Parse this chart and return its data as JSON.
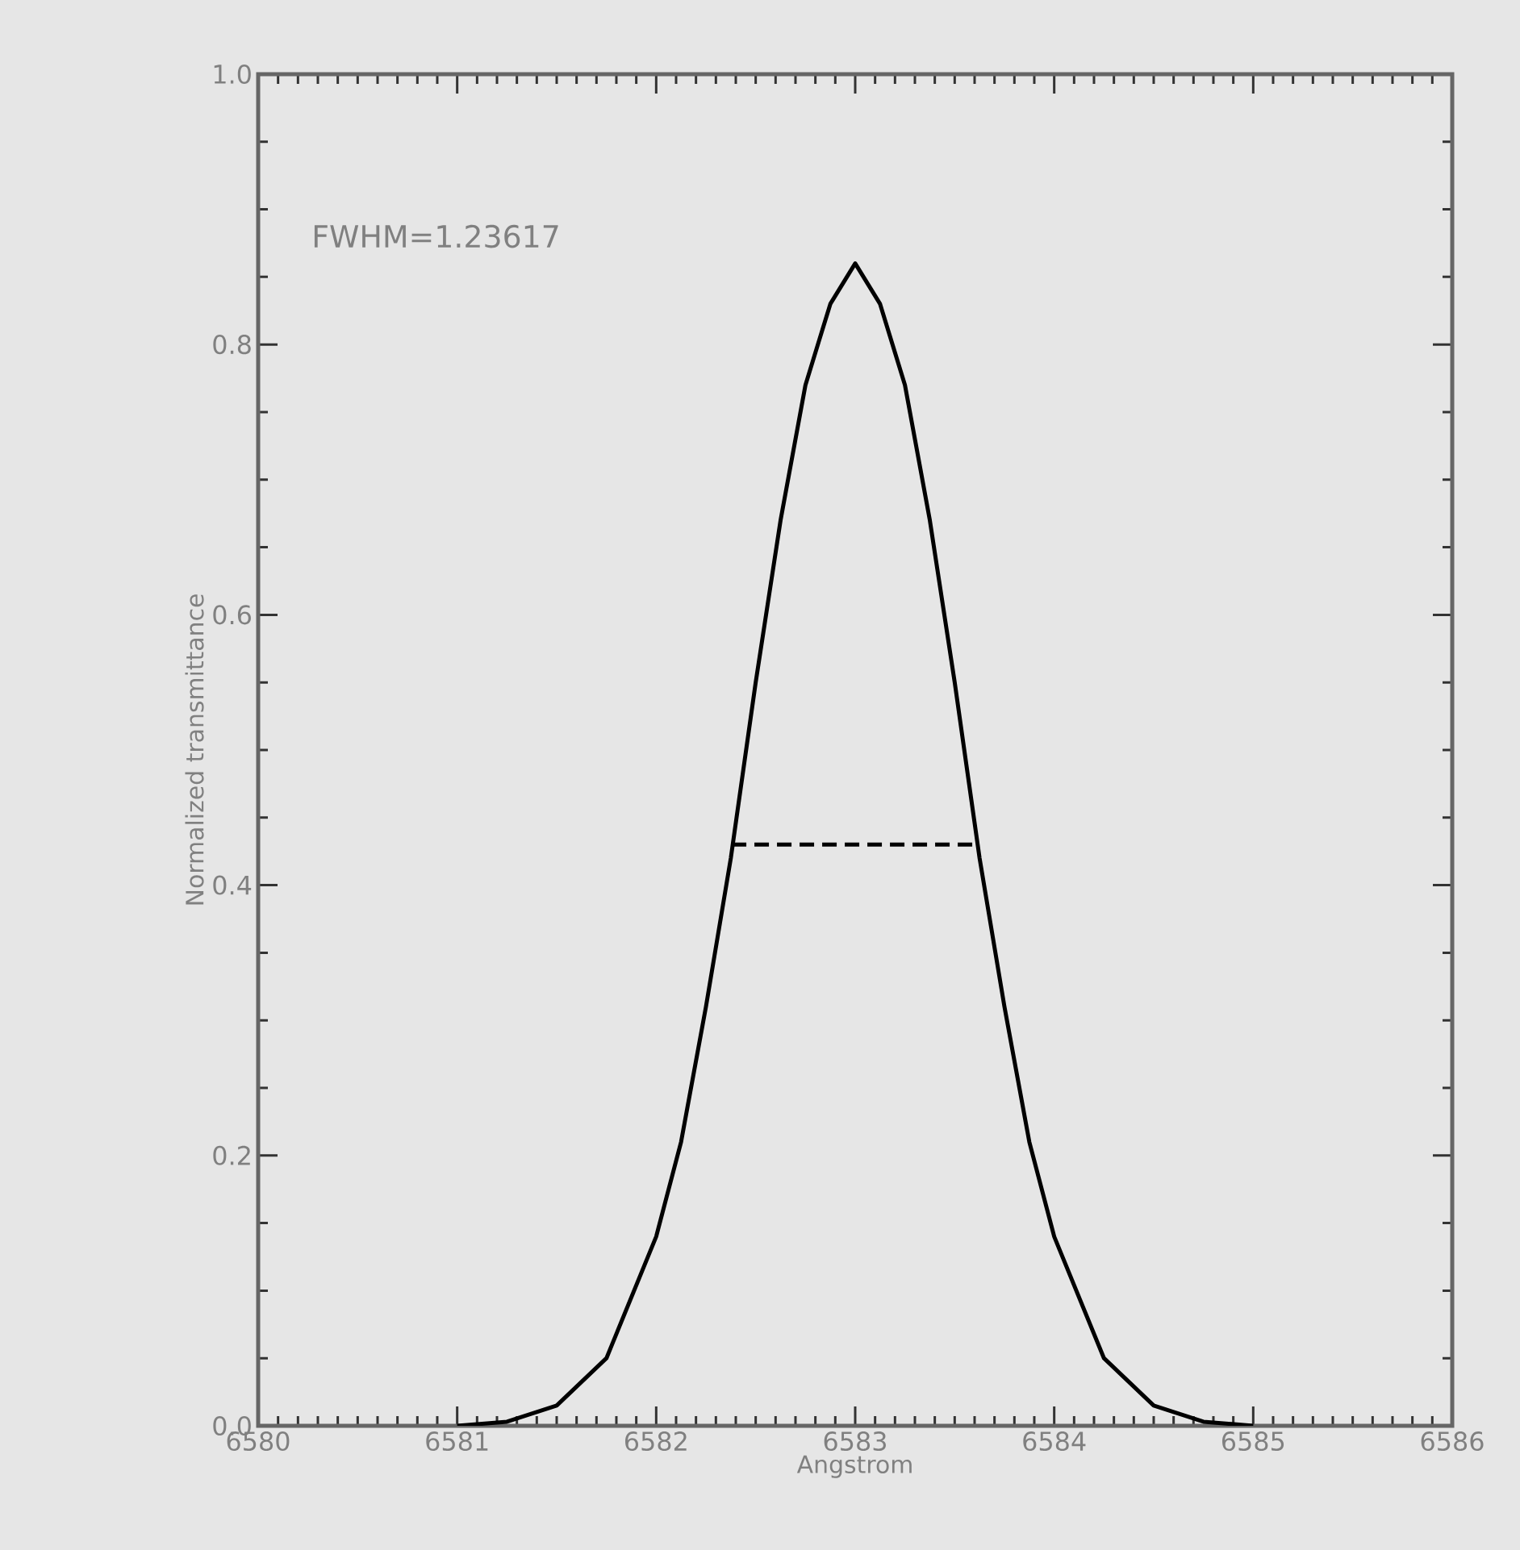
{
  "chart_data": {
    "type": "line",
    "xlabel": "Angstrom",
    "ylabel": "Normalized transmittance",
    "annotations": [
      "FWHM=1.23617"
    ],
    "xlim": [
      6580,
      6586
    ],
    "xticks": [
      6580,
      6581,
      6582,
      6583,
      6584,
      6585,
      6586
    ],
    "ylim": [
      0,
      1
    ],
    "yticks": [
      {
        "value": 0,
        "label": "0.0"
      },
      0.2,
      0.4,
      0.6,
      0.8,
      {
        "value": 1,
        "label": "1.0"
      }
    ],
    "marker": "none",
    "series": [
      {
        "color": "#000000",
        "line_style": "solid",
        "x": [
          6581.0,
          6581.25,
          6581.5,
          6581.75,
          6582.0,
          6582.125,
          6582.25,
          6582.375,
          6582.5,
          6582.625,
          6582.75,
          6582.875,
          6583.0,
          6583.125,
          6583.25,
          6583.375,
          6583.5,
          6583.625,
          6583.75,
          6583.875,
          6584.0,
          6584.25,
          6584.5,
          6584.75,
          6585.0
        ],
        "values": [
          0.0,
          0.003,
          0.015,
          0.05,
          0.14,
          0.21,
          0.31,
          0.42,
          0.55,
          0.67,
          0.77,
          0.83,
          0.86,
          0.83,
          0.77,
          0.67,
          0.55,
          0.42,
          0.31,
          0.21,
          0.14,
          0.05,
          0.015,
          0.003,
          0.0
        ]
      },
      {
        "color": "#000000",
        "line_style": "dashed",
        "x": [
          6582.38,
          6583.62
        ],
        "values": [
          0.43,
          0.43
        ]
      }
    ]
  }
}
